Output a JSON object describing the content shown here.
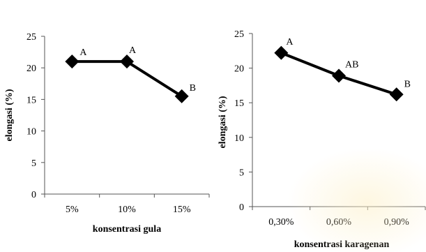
{
  "chart_data": [
    {
      "type": "line",
      "title": "",
      "xlabel": "konsentrasi gula",
      "ylabel": "elongasi (%)",
      "categories": [
        "5%",
        "10%",
        "15%"
      ],
      "values": [
        21,
        21,
        15.5
      ],
      "point_labels": [
        "A",
        "A",
        "B"
      ],
      "ylim": [
        0,
        25
      ],
      "yticks": [
        "0",
        "5",
        "10",
        "15",
        "20",
        "25"
      ],
      "grid": false,
      "line_color": "#000000",
      "marker": "diamond"
    },
    {
      "type": "line",
      "title": "",
      "xlabel": "konsentrasi karagenan",
      "ylabel": "elongasi (%)",
      "categories": [
        "0,30%",
        "0,60%",
        "0,90%"
      ],
      "values": [
        22.2,
        18.9,
        16.2
      ],
      "point_labels": [
        "A",
        "AB",
        "B"
      ],
      "ylim": [
        0,
        25
      ],
      "yticks": [
        "0",
        "5",
        "10",
        "15",
        "20",
        "25"
      ],
      "grid": false,
      "line_color": "#000000",
      "marker": "diamond"
    }
  ]
}
